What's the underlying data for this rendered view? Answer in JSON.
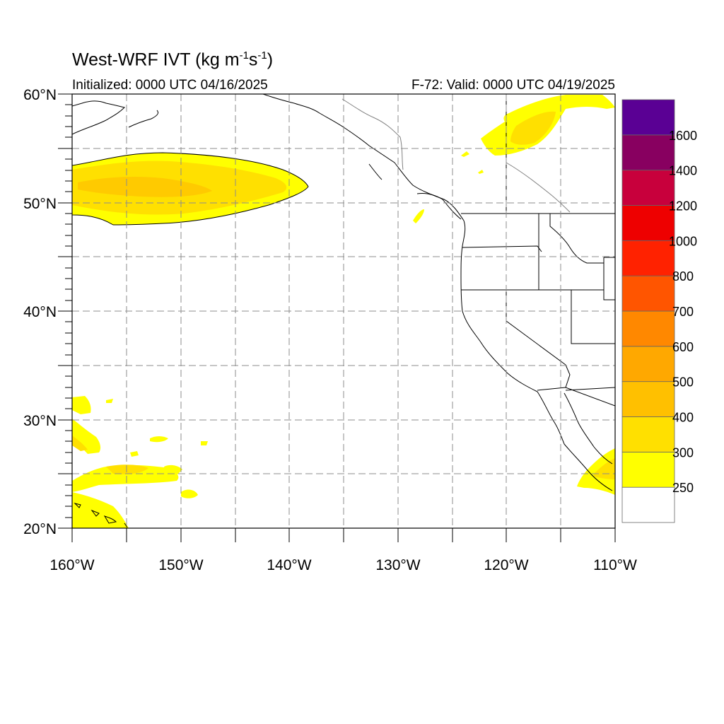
{
  "map": {
    "title_main": "West-WRF IVT (kg m",
    "title_exp1": "-1",
    "title_mid": "s",
    "title_exp2": "-1",
    "title_end": ")",
    "initialized": "Initialized: 0000 UTC 04/16/2025",
    "valid": "F-72: Valid: 0000 UTC 04/19/2025",
    "projection": "cylindrical-equidistant",
    "extent": {
      "lon": [
        -160,
        -110
      ],
      "lat": [
        20,
        60
      ]
    },
    "grid_lines": "dashed"
  },
  "axes": {
    "x_ticks": [
      "160°W",
      "150°W",
      "140°W",
      "130°W",
      "120°W",
      "110°W"
    ],
    "y_ticks": [
      "20°N",
      "30°N",
      "40°N",
      "50°N",
      "60°N"
    ]
  },
  "colorbar": {
    "levels": [
      "250",
      "300",
      "400",
      "500",
      "600",
      "700",
      "800",
      "1000",
      "1200",
      "1400",
      "1600"
    ],
    "colors": [
      "#ffffff",
      "#ffff00",
      "#ffe000",
      "#ffc000",
      "#ffa800",
      "#ff8800",
      "#ff5500",
      "#ff2200",
      "#ee0000",
      "#c8003c",
      "#880060",
      "#5a0094"
    ]
  },
  "features": {
    "ivt_plumes": [
      {
        "name": "North Pacific plume",
        "lon": [
          -160,
          -138
        ],
        "lat": [
          48,
          54
        ],
        "max_level": "400"
      },
      {
        "name": "Canada plume",
        "lon": [
          -124,
          -112
        ],
        "lat": [
          55,
          60
        ],
        "max_level": "300"
      },
      {
        "name": "Subtropical patches near Hawaii",
        "lon": [
          -160,
          -145
        ],
        "lat": [
          20,
          32
        ],
        "max_level": "300"
      },
      {
        "name": "Northern Mexico",
        "lon": [
          -114,
          -110
        ],
        "lat": [
          23,
          27
        ],
        "max_level": "300"
      }
    ]
  }
}
